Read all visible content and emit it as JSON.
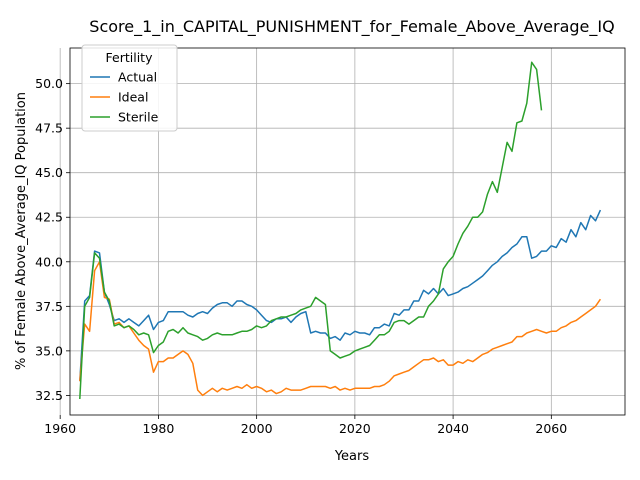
{
  "chart_data": {
    "type": "line",
    "title": "Score_1_in_CAPITAL_PUNISHMENT_for_Female_Above_Average_IQ",
    "xlabel": "Years",
    "ylabel": "% of Female Above_Average_IQ Population",
    "xlim": [
      1962,
      2075
    ],
    "ylim": [
      31.4,
      52.0
    ],
    "xticks": [
      1960,
      1980,
      2000,
      2020,
      2040,
      2060
    ],
    "yticks": [
      32.5,
      35.0,
      37.5,
      40.0,
      42.5,
      45.0,
      47.5,
      50.0
    ],
    "grid": true,
    "legend": {
      "title": "Fertility",
      "placement": "top-left"
    },
    "series": [
      {
        "name": "Actual",
        "color": "#1f77b4",
        "points": [
          [
            1964,
            33.3
          ],
          [
            1965,
            37.8
          ],
          [
            1966,
            38.1
          ],
          [
            1967,
            40.6
          ],
          [
            1968,
            40.5
          ],
          [
            1969,
            38.3
          ],
          [
            1970,
            37.6
          ],
          [
            1971,
            36.7
          ],
          [
            1972,
            36.8
          ],
          [
            1973,
            36.6
          ],
          [
            1974,
            36.8
          ],
          [
            1975,
            36.6
          ],
          [
            1976,
            36.4
          ],
          [
            1977,
            36.7
          ],
          [
            1978,
            37.0
          ],
          [
            1979,
            36.2
          ],
          [
            1980,
            36.6
          ],
          [
            1981,
            36.7
          ],
          [
            1982,
            37.2
          ],
          [
            1983,
            37.2
          ],
          [
            1984,
            37.2
          ],
          [
            1985,
            37.2
          ],
          [
            1986,
            37.0
          ],
          [
            1987,
            36.9
          ],
          [
            1988,
            37.1
          ],
          [
            1989,
            37.2
          ],
          [
            1990,
            37.1
          ],
          [
            1991,
            37.4
          ],
          [
            1992,
            37.6
          ],
          [
            1993,
            37.7
          ],
          [
            1994,
            37.7
          ],
          [
            1995,
            37.5
          ],
          [
            1996,
            37.8
          ],
          [
            1997,
            37.8
          ],
          [
            1998,
            37.6
          ],
          [
            1999,
            37.5
          ],
          [
            2000,
            37.3
          ],
          [
            2001,
            37.0
          ],
          [
            2002,
            36.7
          ],
          [
            2003,
            36.6
          ],
          [
            2004,
            36.8
          ],
          [
            2005,
            36.8
          ],
          [
            2006,
            36.9
          ],
          [
            2007,
            36.6
          ],
          [
            2008,
            36.9
          ],
          [
            2009,
            37.1
          ],
          [
            2010,
            37.2
          ],
          [
            2011,
            36.0
          ],
          [
            2012,
            36.1
          ],
          [
            2013,
            36.0
          ],
          [
            2014,
            36.0
          ],
          [
            2015,
            35.7
          ],
          [
            2016,
            35.8
          ],
          [
            2017,
            35.6
          ],
          [
            2018,
            36.0
          ],
          [
            2019,
            35.9
          ],
          [
            2020,
            36.1
          ],
          [
            2021,
            36.0
          ],
          [
            2022,
            36.0
          ],
          [
            2023,
            35.9
          ],
          [
            2024,
            36.3
          ],
          [
            2025,
            36.3
          ],
          [
            2026,
            36.5
          ],
          [
            2027,
            36.4
          ],
          [
            2028,
            37.1
          ],
          [
            2029,
            37.0
          ],
          [
            2030,
            37.3
          ],
          [
            2031,
            37.3
          ],
          [
            2032,
            37.8
          ],
          [
            2033,
            37.8
          ],
          [
            2034,
            38.4
          ],
          [
            2035,
            38.2
          ],
          [
            2036,
            38.5
          ],
          [
            2037,
            38.2
          ],
          [
            2038,
            38.5
          ],
          [
            2039,
            38.1
          ],
          [
            2040,
            38.2
          ],
          [
            2041,
            38.3
          ],
          [
            2042,
            38.5
          ],
          [
            2043,
            38.6
          ],
          [
            2044,
            38.8
          ],
          [
            2045,
            39.0
          ],
          [
            2046,
            39.2
          ],
          [
            2047,
            39.5
          ],
          [
            2048,
            39.8
          ],
          [
            2049,
            40.0
          ],
          [
            2050,
            40.3
          ],
          [
            2051,
            40.5
          ],
          [
            2052,
            40.8
          ],
          [
            2053,
            41.0
          ],
          [
            2054,
            41.4
          ],
          [
            2055,
            41.4
          ],
          [
            2056,
            40.2
          ],
          [
            2057,
            40.3
          ],
          [
            2058,
            40.6
          ],
          [
            2059,
            40.6
          ],
          [
            2060,
            40.9
          ],
          [
            2061,
            40.8
          ],
          [
            2062,
            41.3
          ],
          [
            2063,
            41.1
          ],
          [
            2064,
            41.8
          ],
          [
            2065,
            41.4
          ],
          [
            2066,
            42.2
          ],
          [
            2067,
            41.8
          ],
          [
            2068,
            42.6
          ],
          [
            2069,
            42.3
          ],
          [
            2070,
            42.9
          ]
        ]
      },
      {
        "name": "Ideal",
        "color": "#ff7f0e",
        "points": [
          [
            1964,
            33.3
          ],
          [
            1965,
            36.5
          ],
          [
            1966,
            36.1
          ],
          [
            1967,
            39.5
          ],
          [
            1968,
            40.0
          ],
          [
            1969,
            38.0
          ],
          [
            1970,
            37.9
          ],
          [
            1971,
            36.5
          ],
          [
            1972,
            36.6
          ],
          [
            1973,
            36.3
          ],
          [
            1974,
            36.4
          ],
          [
            1975,
            36.0
          ],
          [
            1976,
            35.6
          ],
          [
            1977,
            35.3
          ],
          [
            1978,
            35.1
          ],
          [
            1979,
            33.8
          ],
          [
            1980,
            34.4
          ],
          [
            1981,
            34.4
          ],
          [
            1982,
            34.6
          ],
          [
            1983,
            34.6
          ],
          [
            1984,
            34.8
          ],
          [
            1985,
            35.0
          ],
          [
            1986,
            34.8
          ],
          [
            1987,
            34.3
          ],
          [
            1988,
            32.8
          ],
          [
            1989,
            32.5
          ],
          [
            1990,
            32.7
          ],
          [
            1991,
            32.9
          ],
          [
            1992,
            32.7
          ],
          [
            1993,
            32.9
          ],
          [
            1994,
            32.8
          ],
          [
            1995,
            32.9
          ],
          [
            1996,
            33.0
          ],
          [
            1997,
            32.9
          ],
          [
            1998,
            33.1
          ],
          [
            1999,
            32.9
          ],
          [
            2000,
            33.0
          ],
          [
            2001,
            32.9
          ],
          [
            2002,
            32.7
          ],
          [
            2003,
            32.8
          ],
          [
            2004,
            32.6
          ],
          [
            2005,
            32.7
          ],
          [
            2006,
            32.9
          ],
          [
            2007,
            32.8
          ],
          [
            2008,
            32.8
          ],
          [
            2009,
            32.8
          ],
          [
            2010,
            32.9
          ],
          [
            2011,
            33.0
          ],
          [
            2012,
            33.0
          ],
          [
            2013,
            33.0
          ],
          [
            2014,
            33.0
          ],
          [
            2015,
            32.9
          ],
          [
            2016,
            33.0
          ],
          [
            2017,
            32.8
          ],
          [
            2018,
            32.9
          ],
          [
            2019,
            32.8
          ],
          [
            2020,
            32.9
          ],
          [
            2021,
            32.9
          ],
          [
            2022,
            32.9
          ],
          [
            2023,
            32.9
          ],
          [
            2024,
            33.0
          ],
          [
            2025,
            33.0
          ],
          [
            2026,
            33.1
          ],
          [
            2027,
            33.3
          ],
          [
            2028,
            33.6
          ],
          [
            2029,
            33.7
          ],
          [
            2030,
            33.8
          ],
          [
            2031,
            33.9
          ],
          [
            2032,
            34.1
          ],
          [
            2033,
            34.3
          ],
          [
            2034,
            34.5
          ],
          [
            2035,
            34.5
          ],
          [
            2036,
            34.6
          ],
          [
            2037,
            34.4
          ],
          [
            2038,
            34.5
          ],
          [
            2039,
            34.2
          ],
          [
            2040,
            34.2
          ],
          [
            2041,
            34.4
          ],
          [
            2042,
            34.3
          ],
          [
            2043,
            34.5
          ],
          [
            2044,
            34.4
          ],
          [
            2045,
            34.6
          ],
          [
            2046,
            34.8
          ],
          [
            2047,
            34.9
          ],
          [
            2048,
            35.1
          ],
          [
            2049,
            35.2
          ],
          [
            2050,
            35.3
          ],
          [
            2051,
            35.4
          ],
          [
            2052,
            35.5
          ],
          [
            2053,
            35.8
          ],
          [
            2054,
            35.8
          ],
          [
            2055,
            36.0
          ],
          [
            2056,
            36.1
          ],
          [
            2057,
            36.2
          ],
          [
            2058,
            36.1
          ],
          [
            2059,
            36.0
          ],
          [
            2060,
            36.1
          ],
          [
            2061,
            36.1
          ],
          [
            2062,
            36.3
          ],
          [
            2063,
            36.4
          ],
          [
            2064,
            36.6
          ],
          [
            2065,
            36.7
          ],
          [
            2066,
            36.9
          ],
          [
            2067,
            37.1
          ],
          [
            2068,
            37.3
          ],
          [
            2069,
            37.5
          ],
          [
            2070,
            37.9
          ]
        ]
      },
      {
        "name": "Sterile",
        "color": "#2ca02c",
        "points": [
          [
            1964,
            32.3
          ],
          [
            1965,
            37.5
          ],
          [
            1966,
            38.0
          ],
          [
            1967,
            40.5
          ],
          [
            1968,
            40.2
          ],
          [
            1969,
            38.3
          ],
          [
            1970,
            37.8
          ],
          [
            1971,
            36.4
          ],
          [
            1972,
            36.5
          ],
          [
            1973,
            36.3
          ],
          [
            1974,
            36.4
          ],
          [
            1975,
            36.2
          ],
          [
            1976,
            35.9
          ],
          [
            1977,
            36.0
          ],
          [
            1978,
            35.9
          ],
          [
            1979,
            34.9
          ],
          [
            1980,
            35.3
          ],
          [
            1981,
            35.5
          ],
          [
            1982,
            36.1
          ],
          [
            1983,
            36.2
          ],
          [
            1984,
            36.0
          ],
          [
            1985,
            36.3
          ],
          [
            1986,
            36.0
          ],
          [
            1987,
            35.9
          ],
          [
            1988,
            35.8
          ],
          [
            1989,
            35.6
          ],
          [
            1990,
            35.7
          ],
          [
            1991,
            35.9
          ],
          [
            1992,
            36.0
          ],
          [
            1993,
            35.9
          ],
          [
            1994,
            35.9
          ],
          [
            1995,
            35.9
          ],
          [
            1996,
            36.0
          ],
          [
            1997,
            36.1
          ],
          [
            1998,
            36.1
          ],
          [
            1999,
            36.2
          ],
          [
            2000,
            36.4
          ],
          [
            2001,
            36.3
          ],
          [
            2002,
            36.4
          ],
          [
            2003,
            36.7
          ],
          [
            2004,
            36.8
          ],
          [
            2005,
            36.9
          ],
          [
            2006,
            36.9
          ],
          [
            2007,
            37.0
          ],
          [
            2008,
            37.1
          ],
          [
            2009,
            37.3
          ],
          [
            2010,
            37.4
          ],
          [
            2011,
            37.5
          ],
          [
            2012,
            38.0
          ],
          [
            2013,
            37.8
          ],
          [
            2014,
            37.6
          ],
          [
            2015,
            35.0
          ],
          [
            2016,
            34.8
          ],
          [
            2017,
            34.6
          ],
          [
            2018,
            34.7
          ],
          [
            2019,
            34.8
          ],
          [
            2020,
            35.0
          ],
          [
            2021,
            35.1
          ],
          [
            2022,
            35.2
          ],
          [
            2023,
            35.3
          ],
          [
            2024,
            35.6
          ],
          [
            2025,
            35.9
          ],
          [
            2026,
            35.9
          ],
          [
            2027,
            36.1
          ],
          [
            2028,
            36.6
          ],
          [
            2029,
            36.7
          ],
          [
            2030,
            36.7
          ],
          [
            2031,
            36.5
          ],
          [
            2032,
            36.7
          ],
          [
            2033,
            36.9
          ],
          [
            2034,
            36.9
          ],
          [
            2035,
            37.5
          ],
          [
            2036,
            37.8
          ],
          [
            2037,
            38.2
          ],
          [
            2038,
            39.6
          ],
          [
            2039,
            40.0
          ],
          [
            2040,
            40.3
          ],
          [
            2041,
            41.0
          ],
          [
            2042,
            41.6
          ],
          [
            2043,
            42.0
          ],
          [
            2044,
            42.5
          ],
          [
            2045,
            42.5
          ],
          [
            2046,
            42.8
          ],
          [
            2047,
            43.8
          ],
          [
            2048,
            44.5
          ],
          [
            2049,
            43.9
          ],
          [
            2050,
            45.3
          ],
          [
            2051,
            46.7
          ],
          [
            2052,
            46.2
          ],
          [
            2053,
            47.8
          ],
          [
            2054,
            47.9
          ],
          [
            2055,
            48.9
          ],
          [
            2056,
            51.2
          ],
          [
            2057,
            50.8
          ],
          [
            2058,
            48.5
          ]
        ]
      }
    ]
  }
}
